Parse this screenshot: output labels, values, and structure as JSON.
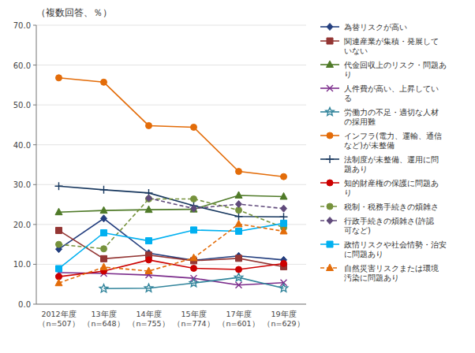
{
  "chart_data": {
    "type": "line",
    "title": "（複数回答、％）",
    "categories": [
      "2012年度\n（n=507）",
      "13年度\n（n=648）",
      "14年度\n（n=755）",
      "15年度\n（n=774）",
      "17年度\n（n=601）",
      "19年度\n（n=629）"
    ],
    "ylim": [
      0.0,
      70.0
    ],
    "yticks": [
      {
        "value": 0.0,
        "label": "0.0"
      },
      {
        "value": 10.0,
        "label": "10.0"
      },
      {
        "value": 20.0,
        "label": "20.0"
      },
      {
        "value": 30.0,
        "label": "30.0"
      },
      {
        "value": 40.0,
        "label": "40.0"
      },
      {
        "value": 50.0,
        "label": "50.0"
      },
      {
        "value": 60.0,
        "label": "60.0"
      },
      {
        "value": 70.0,
        "label": "70.0"
      }
    ],
    "grid": true,
    "legend": "right",
    "series": [
      {
        "name": "為替リスクが高い",
        "values": [
          13.8,
          21.5,
          12.8,
          11.0,
          12.1,
          11.1
        ],
        "color": "#243F7F",
        "marker": "diamond",
        "line_style": "solid"
      },
      {
        "name": "関連産業が集積・発展して\nいない",
        "values": [
          18.5,
          11.4,
          12.3,
          10.9,
          11.5,
          9.4
        ],
        "color": "#943634",
        "marker": "square",
        "line_style": "solid"
      },
      {
        "name": "代金回収上のリスク・問題あ\nり",
        "values": [
          23.1,
          23.5,
          23.7,
          23.8,
          27.3,
          27.0
        ],
        "color": "#4F7A28",
        "marker": "triangle",
        "line_style": "solid"
      },
      {
        "name": "人件費が高い、上昇してい\nる",
        "values": [
          7.9,
          7.7,
          7.3,
          6.5,
          4.8,
          5.4
        ],
        "color": "#7B2C8B",
        "marker": "x",
        "line_style": "solid"
      },
      {
        "name": "労働力の不足・適切な人材\nの採用難",
        "values": [
          null,
          3.9,
          4.0,
          5.3,
          6.7,
          4.0
        ],
        "color": "#31849B",
        "marker": "star",
        "line_style": "solid"
      },
      {
        "name": "インフラ(電力、運輸、通信\nなど)が未整備",
        "values": [
          56.8,
          55.7,
          44.8,
          44.4,
          33.3,
          32.0
        ],
        "color": "#E36C09",
        "marker": "circle",
        "line_style": "solid"
      },
      {
        "name": "法制度が未整備、運用に問\n題あり",
        "values": [
          29.6,
          28.7,
          27.9,
          24.7,
          22.0,
          21.9
        ],
        "color": "#17375E",
        "marker": "plus",
        "line_style": "solid"
      },
      {
        "name": "知的財産権の保護に問題あ\nり",
        "values": [
          6.9,
          8.3,
          11.1,
          9.0,
          8.7,
          10.2
        ],
        "color": "#CC0000",
        "marker": "circle",
        "line_style": "solid"
      },
      {
        "name": "税制・税務手続きの煩雑さ",
        "values": [
          15.0,
          13.9,
          26.4,
          26.4,
          23.6,
          19.2
        ],
        "color": "#76923C",
        "marker": "circle",
        "line_style": "dashed"
      },
      {
        "name": "行政手続きの煩雑さ(許認\n可など)",
        "values": [
          null,
          null,
          26.6,
          24.0,
          25.1,
          24.0
        ],
        "color": "#604A7B",
        "marker": "diamond",
        "line_style": "dashed"
      },
      {
        "name": "政情リスクや社会情勢・治安\nに問題あり",
        "values": [
          8.9,
          17.9,
          15.9,
          18.6,
          18.3,
          20.3
        ],
        "color": "#00B0F0",
        "marker": "square",
        "line_style": "solid"
      },
      {
        "name": "自然災害リスクまたは環境\n汚染に問題あり",
        "values": [
          5.3,
          9.3,
          8.3,
          11.6,
          20.1,
          18.3
        ],
        "color": "#E36C09",
        "marker": "triangle",
        "line_style": "dashed"
      }
    ]
  }
}
